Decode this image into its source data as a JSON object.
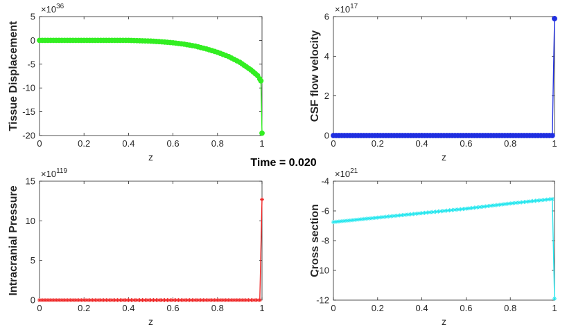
{
  "figure": {
    "sgtitle": "Time = 0.020"
  },
  "chart_data": [
    {
      "type": "line",
      "ylabel": "Tissue Displacement",
      "xlabel": "z",
      "exponent_base": "×10",
      "exponent": "36",
      "xlim": [
        0,
        1
      ],
      "ylim": [
        -20,
        5
      ],
      "xticks": [
        "0",
        "0.2",
        "0.4",
        "0.6",
        "0.8",
        "1"
      ],
      "yticks": [
        "5",
        "0",
        "-5",
        "-10",
        "-15",
        "-20"
      ],
      "grid": false,
      "series": [
        {
          "color": "#33ee22",
          "marker": "circle",
          "x": [
            0,
            0.1,
            0.2,
            0.3,
            0.4,
            0.5,
            0.55,
            0.6,
            0.65,
            0.7,
            0.75,
            0.8,
            0.85,
            0.9,
            0.95,
            0.98,
            0.99,
            0.995,
            1.0
          ],
          "y": [
            0,
            0,
            0,
            0,
            0,
            -0.15,
            -0.3,
            -0.5,
            -0.8,
            -1.2,
            -1.8,
            -2.5,
            -3.4,
            -4.6,
            -6.2,
            -7.4,
            -8.1,
            -8.5,
            -19.5
          ]
        }
      ]
    },
    {
      "type": "line",
      "ylabel": "CSF flow velocity",
      "xlabel": "z",
      "exponent_base": "×10",
      "exponent": "17",
      "xlim": [
        0,
        1
      ],
      "ylim": [
        0,
        6
      ],
      "xticks": [
        "0",
        "0.2",
        "0.4",
        "0.6",
        "0.8",
        "1"
      ],
      "yticks": [
        "6",
        "4",
        "2",
        "0"
      ],
      "grid": false,
      "series": [
        {
          "color": "#1f2ee0",
          "marker": "circle",
          "x": [
            0,
            0.1,
            0.2,
            0.3,
            0.4,
            0.5,
            0.6,
            0.7,
            0.8,
            0.9,
            0.99,
            1.0
          ],
          "y": [
            0,
            0,
            0,
            0,
            0,
            0,
            0,
            0,
            0,
            0,
            0,
            5.9
          ]
        }
      ]
    },
    {
      "type": "line",
      "ylabel": "Intracranial Pressure",
      "xlabel": "z",
      "exponent_base": "×10",
      "exponent": "119",
      "xlim": [
        0,
        1
      ],
      "ylim": [
        0,
        15
      ],
      "xticks": [
        "0",
        "0.2",
        "0.4",
        "0.6",
        "0.8",
        "1"
      ],
      "yticks": [
        "15",
        "10",
        "5",
        "0"
      ],
      "grid": false,
      "series": [
        {
          "color": "#ee2222",
          "marker": "asterisk",
          "x": [
            0,
            0.1,
            0.2,
            0.3,
            0.4,
            0.5,
            0.6,
            0.7,
            0.8,
            0.9,
            0.99,
            1.0
          ],
          "y": [
            0,
            0,
            0,
            0,
            0,
            0,
            0,
            0,
            0,
            0,
            0,
            12.7
          ]
        }
      ]
    },
    {
      "type": "line",
      "ylabel": "Cross section",
      "xlabel": "z",
      "exponent_base": "×10",
      "exponent": "21",
      "xlim": [
        0,
        1
      ],
      "ylim": [
        -12,
        -4
      ],
      "xticks": [
        "0",
        "0.2",
        "0.4",
        "0.6",
        "0.8",
        "1"
      ],
      "yticks": [
        "-4",
        "-6",
        "-8",
        "-10",
        "-12"
      ],
      "grid": false,
      "series": [
        {
          "color": "#22e6ee",
          "marker": "asterisk",
          "x": [
            0,
            0.2,
            0.4,
            0.6,
            0.8,
            0.99,
            1.0
          ],
          "y": [
            -6.75,
            -6.45,
            -6.15,
            -5.85,
            -5.5,
            -5.2,
            -11.9
          ]
        }
      ]
    }
  ]
}
